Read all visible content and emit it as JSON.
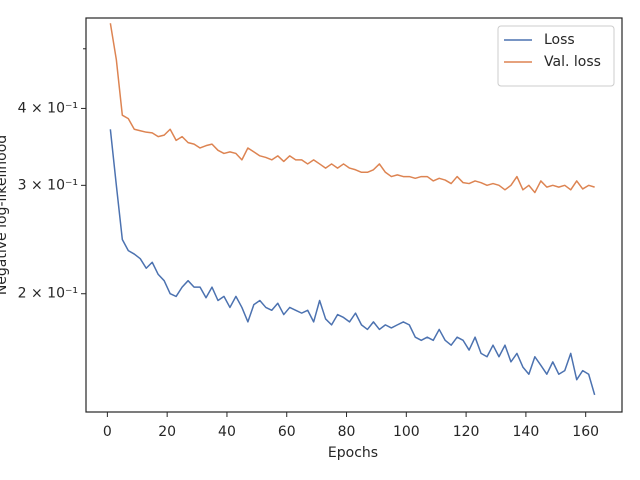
{
  "chart_data": {
    "type": "line",
    "x_label": "Epochs",
    "y_label": "Negative log-likelihood",
    "x": [
      1,
      3,
      5,
      7,
      9,
      11,
      13,
      15,
      17,
      19,
      21,
      23,
      25,
      27,
      29,
      31,
      33,
      35,
      37,
      39,
      41,
      43,
      45,
      47,
      49,
      51,
      53,
      55,
      57,
      59,
      61,
      63,
      65,
      67,
      69,
      71,
      73,
      75,
      77,
      79,
      81,
      83,
      85,
      87,
      89,
      91,
      93,
      95,
      97,
      99,
      101,
      103,
      105,
      107,
      109,
      111,
      113,
      115,
      117,
      119,
      121,
      123,
      125,
      127,
      129,
      131,
      133,
      135,
      137,
      139,
      141,
      143,
      145,
      147,
      149,
      151,
      153,
      155,
      157,
      159,
      161,
      163
    ],
    "series": [
      {
        "name": "Loss",
        "color": "#4c72b0",
        "values": [
          0.37,
          0.3,
          0.245,
          0.235,
          0.232,
          0.228,
          0.22,
          0.225,
          0.215,
          0.21,
          0.2,
          0.198,
          0.205,
          0.21,
          0.205,
          0.205,
          0.197,
          0.205,
          0.195,
          0.198,
          0.19,
          0.198,
          0.19,
          0.18,
          0.192,
          0.195,
          0.19,
          0.188,
          0.193,
          0.185,
          0.19,
          0.188,
          0.186,
          0.188,
          0.18,
          0.195,
          0.182,
          0.178,
          0.185,
          0.183,
          0.18,
          0.186,
          0.178,
          0.175,
          0.18,
          0.175,
          0.178,
          0.176,
          0.178,
          0.18,
          0.178,
          0.17,
          0.168,
          0.17,
          0.168,
          0.175,
          0.168,
          0.165,
          0.17,
          0.168,
          0.162,
          0.17,
          0.16,
          0.158,
          0.165,
          0.158,
          0.165,
          0.155,
          0.16,
          0.152,
          0.148,
          0.158,
          0.153,
          0.148,
          0.155,
          0.148,
          0.15,
          0.16,
          0.145,
          0.15,
          0.148,
          0.137
        ]
      },
      {
        "name": "Val. loss",
        "color": "#dd8452",
        "values": [
          0.55,
          0.48,
          0.39,
          0.385,
          0.37,
          0.368,
          0.366,
          0.365,
          0.36,
          0.362,
          0.37,
          0.355,
          0.36,
          0.352,
          0.35,
          0.345,
          0.348,
          0.35,
          0.342,
          0.338,
          0.34,
          0.338,
          0.33,
          0.345,
          0.34,
          0.335,
          0.333,
          0.33,
          0.335,
          0.328,
          0.335,
          0.33,
          0.33,
          0.325,
          0.33,
          0.325,
          0.32,
          0.325,
          0.32,
          0.325,
          0.32,
          0.318,
          0.315,
          0.315,
          0.318,
          0.325,
          0.315,
          0.31,
          0.312,
          0.31,
          0.31,
          0.308,
          0.31,
          0.31,
          0.305,
          0.308,
          0.306,
          0.302,
          0.31,
          0.303,
          0.302,
          0.305,
          0.303,
          0.3,
          0.302,
          0.3,
          0.295,
          0.3,
          0.31,
          0.295,
          0.3,
          0.292,
          0.305,
          0.298,
          0.3,
          0.298,
          0.3,
          0.295,
          0.305,
          0.296,
          0.3,
          0.298
        ]
      }
    ],
    "xlim": [
      -7.15,
      172.15
    ],
    "xticks": [
      0,
      20,
      40,
      60,
      80,
      100,
      120,
      140,
      160
    ],
    "ylim": [
      0.1285,
      0.561
    ],
    "log_y": true,
    "yticks": [
      {
        "value": 0.2,
        "label": "2 × 10⁻¹"
      },
      {
        "value": 0.3,
        "label": "3 × 10⁻¹"
      },
      {
        "value": 0.4,
        "label": "4 × 10⁻¹"
      }
    ],
    "yminorticks": [
      0.5
    ],
    "legend": "upper right"
  }
}
